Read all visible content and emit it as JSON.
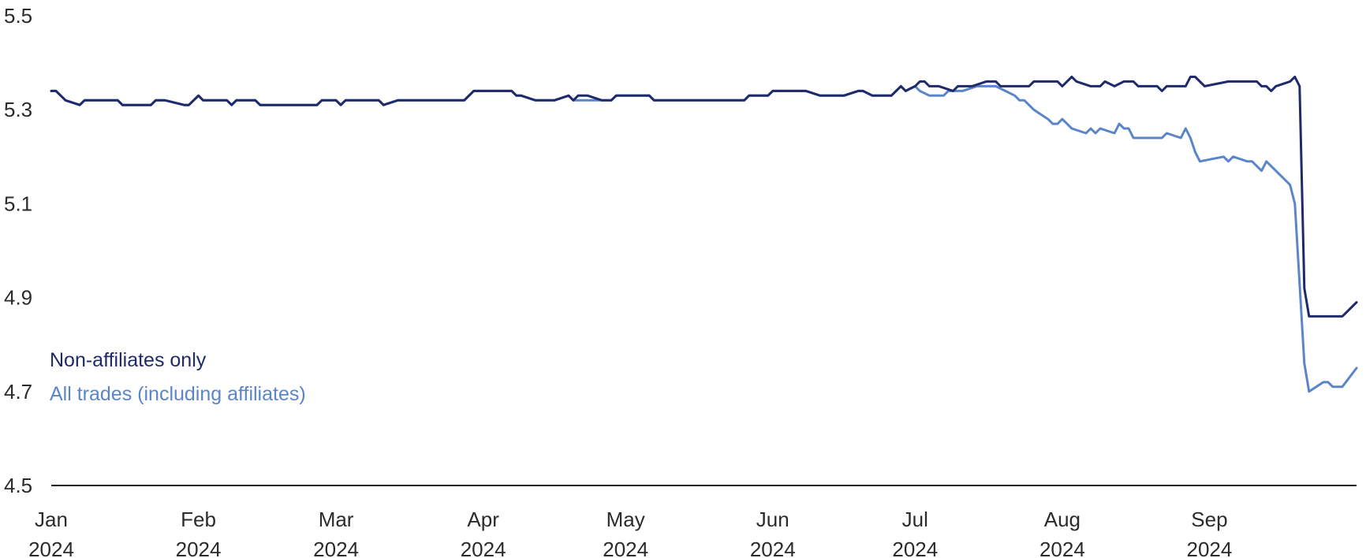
{
  "chart_data": {
    "type": "line",
    "title": "",
    "xlabel": "",
    "ylabel": "",
    "ylim": [
      4.5,
      5.5
    ],
    "yticks": [
      4.5,
      4.7,
      4.9,
      5.1,
      5.3,
      5.5
    ],
    "yticks_labels": [
      "4.5",
      "4.7",
      "4.9",
      "5.1",
      "5.3",
      "5.5"
    ],
    "xlim": [
      "2024-01-01",
      "2024-09-30"
    ],
    "xticks": [
      {
        "date": "2024-01-01",
        "month": "Jan",
        "year": "2024"
      },
      {
        "date": "2024-02-01",
        "month": "Feb",
        "year": "2024"
      },
      {
        "date": "2024-03-01",
        "month": "Mar",
        "year": "2024"
      },
      {
        "date": "2024-04-01",
        "month": "Apr",
        "year": "2024"
      },
      {
        "date": "2024-05-01",
        "month": "May",
        "year": "2024"
      },
      {
        "date": "2024-06-01",
        "month": "Jun",
        "year": "2024"
      },
      {
        "date": "2024-07-01",
        "month": "Jul",
        "year": "2024"
      },
      {
        "date": "2024-08-01",
        "month": "Aug",
        "year": "2024"
      },
      {
        "date": "2024-09-01",
        "month": "Sep",
        "year": "2024"
      }
    ],
    "grid": false,
    "legend_position": "lower-left",
    "series": [
      {
        "name": "Non-affiliates only",
        "color": "#1f2a6b",
        "points": [
          [
            "2024-01-01",
            5.34
          ],
          [
            "2024-01-02",
            5.34
          ],
          [
            "2024-01-04",
            5.32
          ],
          [
            "2024-01-07",
            5.31
          ],
          [
            "2024-01-08",
            5.32
          ],
          [
            "2024-01-15",
            5.32
          ],
          [
            "2024-01-16",
            5.31
          ],
          [
            "2024-01-22",
            5.31
          ],
          [
            "2024-01-23",
            5.32
          ],
          [
            "2024-01-25",
            5.32
          ],
          [
            "2024-01-29",
            5.31
          ],
          [
            "2024-01-30",
            5.31
          ],
          [
            "2024-02-01",
            5.33
          ],
          [
            "2024-02-02",
            5.32
          ],
          [
            "2024-02-07",
            5.32
          ],
          [
            "2024-02-08",
            5.31
          ],
          [
            "2024-02-09",
            5.32
          ],
          [
            "2024-02-13",
            5.32
          ],
          [
            "2024-02-14",
            5.31
          ],
          [
            "2024-02-26",
            5.31
          ],
          [
            "2024-02-27",
            5.32
          ],
          [
            "2024-03-01",
            5.32
          ],
          [
            "2024-03-02",
            5.31
          ],
          [
            "2024-03-03",
            5.32
          ],
          [
            "2024-03-10",
            5.32
          ],
          [
            "2024-03-11",
            5.31
          ],
          [
            "2024-03-14",
            5.32
          ],
          [
            "2024-03-28",
            5.32
          ],
          [
            "2024-03-30",
            5.34
          ],
          [
            "2024-04-07",
            5.34
          ],
          [
            "2024-04-08",
            5.33
          ],
          [
            "2024-04-09",
            5.33
          ],
          [
            "2024-04-12",
            5.32
          ],
          [
            "2024-04-16",
            5.32
          ],
          [
            "2024-04-19",
            5.33
          ],
          [
            "2024-04-20",
            5.32
          ],
          [
            "2024-04-21",
            5.33
          ],
          [
            "2024-04-23",
            5.33
          ],
          [
            "2024-04-26",
            5.32
          ],
          [
            "2024-04-28",
            5.32
          ],
          [
            "2024-04-29",
            5.33
          ],
          [
            "2024-05-06",
            5.33
          ],
          [
            "2024-05-07",
            5.32
          ],
          [
            "2024-05-26",
            5.32
          ],
          [
            "2024-05-27",
            5.33
          ],
          [
            "2024-05-31",
            5.33
          ],
          [
            "2024-06-01",
            5.34
          ],
          [
            "2024-06-08",
            5.34
          ],
          [
            "2024-06-11",
            5.33
          ],
          [
            "2024-06-16",
            5.33
          ],
          [
            "2024-06-19",
            5.34
          ],
          [
            "2024-06-20",
            5.34
          ],
          [
            "2024-06-22",
            5.33
          ],
          [
            "2024-06-26",
            5.33
          ],
          [
            "2024-06-28",
            5.35
          ],
          [
            "2024-06-29",
            5.34
          ],
          [
            "2024-07-01",
            5.35
          ],
          [
            "2024-07-02",
            5.36
          ],
          [
            "2024-07-03",
            5.36
          ],
          [
            "2024-07-04",
            5.35
          ],
          [
            "2024-07-06",
            5.35
          ],
          [
            "2024-07-09",
            5.34
          ],
          [
            "2024-07-10",
            5.35
          ],
          [
            "2024-07-13",
            5.35
          ],
          [
            "2024-07-16",
            5.36
          ],
          [
            "2024-07-18",
            5.36
          ],
          [
            "2024-07-19",
            5.35
          ],
          [
            "2024-07-25",
            5.35
          ],
          [
            "2024-07-26",
            5.36
          ],
          [
            "2024-07-31",
            5.36
          ],
          [
            "2024-08-01",
            5.35
          ],
          [
            "2024-08-03",
            5.37
          ],
          [
            "2024-08-04",
            5.36
          ],
          [
            "2024-08-07",
            5.35
          ],
          [
            "2024-08-09",
            5.35
          ],
          [
            "2024-08-10",
            5.36
          ],
          [
            "2024-08-12",
            5.35
          ],
          [
            "2024-08-14",
            5.36
          ],
          [
            "2024-08-16",
            5.36
          ],
          [
            "2024-08-17",
            5.35
          ],
          [
            "2024-08-21",
            5.35
          ],
          [
            "2024-08-22",
            5.34
          ],
          [
            "2024-08-23",
            5.35
          ],
          [
            "2024-08-27",
            5.35
          ],
          [
            "2024-08-28",
            5.37
          ],
          [
            "2024-08-29",
            5.37
          ],
          [
            "2024-08-31",
            5.35
          ],
          [
            "2024-09-05",
            5.36
          ],
          [
            "2024-09-11",
            5.36
          ],
          [
            "2024-09-12",
            5.35
          ],
          [
            "2024-09-13",
            5.35
          ],
          [
            "2024-09-14",
            5.34
          ],
          [
            "2024-09-15",
            5.35
          ],
          [
            "2024-09-18",
            5.36
          ],
          [
            "2024-09-19",
            5.37
          ],
          [
            "2024-09-20",
            5.35
          ],
          [
            "2024-09-21",
            4.92
          ],
          [
            "2024-09-22",
            4.86
          ],
          [
            "2024-09-29",
            4.86
          ],
          [
            "2024-09-30",
            4.87
          ],
          [
            "2024-10-02",
            4.89
          ]
        ]
      },
      {
        "name": "All trades (including affiliates)",
        "color": "#5b85c9",
        "points": [
          [
            "2024-01-01",
            5.34
          ],
          [
            "2024-01-02",
            5.34
          ],
          [
            "2024-01-04",
            5.32
          ],
          [
            "2024-01-07",
            5.31
          ],
          [
            "2024-01-08",
            5.32
          ],
          [
            "2024-01-15",
            5.32
          ],
          [
            "2024-01-16",
            5.31
          ],
          [
            "2024-01-22",
            5.31
          ],
          [
            "2024-01-23",
            5.32
          ],
          [
            "2024-01-25",
            5.32
          ],
          [
            "2024-01-29",
            5.31
          ],
          [
            "2024-01-30",
            5.31
          ],
          [
            "2024-02-01",
            5.33
          ],
          [
            "2024-02-02",
            5.32
          ],
          [
            "2024-02-07",
            5.32
          ],
          [
            "2024-02-08",
            5.31
          ],
          [
            "2024-02-09",
            5.32
          ],
          [
            "2024-02-13",
            5.32
          ],
          [
            "2024-02-14",
            5.31
          ],
          [
            "2024-02-26",
            5.31
          ],
          [
            "2024-02-27",
            5.32
          ],
          [
            "2024-03-01",
            5.32
          ],
          [
            "2024-03-02",
            5.31
          ],
          [
            "2024-03-03",
            5.32
          ],
          [
            "2024-03-10",
            5.32
          ],
          [
            "2024-03-11",
            5.31
          ],
          [
            "2024-03-14",
            5.32
          ],
          [
            "2024-03-28",
            5.32
          ],
          [
            "2024-03-30",
            5.34
          ],
          [
            "2024-04-07",
            5.34
          ],
          [
            "2024-04-08",
            5.33
          ],
          [
            "2024-04-09",
            5.33
          ],
          [
            "2024-04-12",
            5.32
          ],
          [
            "2024-04-16",
            5.32
          ],
          [
            "2024-04-19",
            5.33
          ],
          [
            "2024-04-20",
            5.32
          ],
          [
            "2024-04-28",
            5.32
          ],
          [
            "2024-04-29",
            5.33
          ],
          [
            "2024-05-06",
            5.33
          ],
          [
            "2024-05-07",
            5.32
          ],
          [
            "2024-05-26",
            5.32
          ],
          [
            "2024-05-27",
            5.33
          ],
          [
            "2024-05-31",
            5.33
          ],
          [
            "2024-06-01",
            5.34
          ],
          [
            "2024-06-08",
            5.34
          ],
          [
            "2024-06-11",
            5.33
          ],
          [
            "2024-06-16",
            5.33
          ],
          [
            "2024-06-19",
            5.34
          ],
          [
            "2024-06-20",
            5.34
          ],
          [
            "2024-06-22",
            5.33
          ],
          [
            "2024-06-26",
            5.33
          ],
          [
            "2024-06-28",
            5.35
          ],
          [
            "2024-06-29",
            5.34
          ],
          [
            "2024-07-01",
            5.35
          ],
          [
            "2024-07-02",
            5.34
          ],
          [
            "2024-07-04",
            5.33
          ],
          [
            "2024-07-07",
            5.33
          ],
          [
            "2024-07-08",
            5.34
          ],
          [
            "2024-07-11",
            5.34
          ],
          [
            "2024-07-14",
            5.35
          ],
          [
            "2024-07-18",
            5.35
          ],
          [
            "2024-07-20",
            5.34
          ],
          [
            "2024-07-22",
            5.33
          ],
          [
            "2024-07-23",
            5.32
          ],
          [
            "2024-07-24",
            5.32
          ],
          [
            "2024-07-26",
            5.3
          ],
          [
            "2024-07-29",
            5.28
          ],
          [
            "2024-07-30",
            5.27
          ],
          [
            "2024-07-31",
            5.27
          ],
          [
            "2024-08-01",
            5.28
          ],
          [
            "2024-08-03",
            5.26
          ],
          [
            "2024-08-06",
            5.25
          ],
          [
            "2024-08-07",
            5.26
          ],
          [
            "2024-08-08",
            5.25
          ],
          [
            "2024-08-09",
            5.26
          ],
          [
            "2024-08-12",
            5.25
          ],
          [
            "2024-08-13",
            5.27
          ],
          [
            "2024-08-14",
            5.26
          ],
          [
            "2024-08-15",
            5.26
          ],
          [
            "2024-08-16",
            5.24
          ],
          [
            "2024-08-21",
            5.24
          ],
          [
            "2024-08-22",
            5.24
          ],
          [
            "2024-08-23",
            5.25
          ],
          [
            "2024-08-26",
            5.24
          ],
          [
            "2024-08-27",
            5.26
          ],
          [
            "2024-08-28",
            5.24
          ],
          [
            "2024-08-29",
            5.21
          ],
          [
            "2024-08-30",
            5.19
          ],
          [
            "2024-09-04",
            5.2
          ],
          [
            "2024-09-05",
            5.19
          ],
          [
            "2024-09-06",
            5.2
          ],
          [
            "2024-09-09",
            5.19
          ],
          [
            "2024-09-10",
            5.19
          ],
          [
            "2024-09-12",
            5.17
          ],
          [
            "2024-09-13",
            5.19
          ],
          [
            "2024-09-15",
            5.17
          ],
          [
            "2024-09-17",
            5.15
          ],
          [
            "2024-09-18",
            5.14
          ],
          [
            "2024-09-19",
            5.1
          ],
          [
            "2024-09-21",
            4.76
          ],
          [
            "2024-09-22",
            4.7
          ],
          [
            "2024-09-25",
            4.72
          ],
          [
            "2024-09-26",
            4.72
          ],
          [
            "2024-09-27",
            4.71
          ],
          [
            "2024-09-29",
            4.71
          ],
          [
            "2024-10-02",
            4.75
          ]
        ]
      }
    ]
  }
}
